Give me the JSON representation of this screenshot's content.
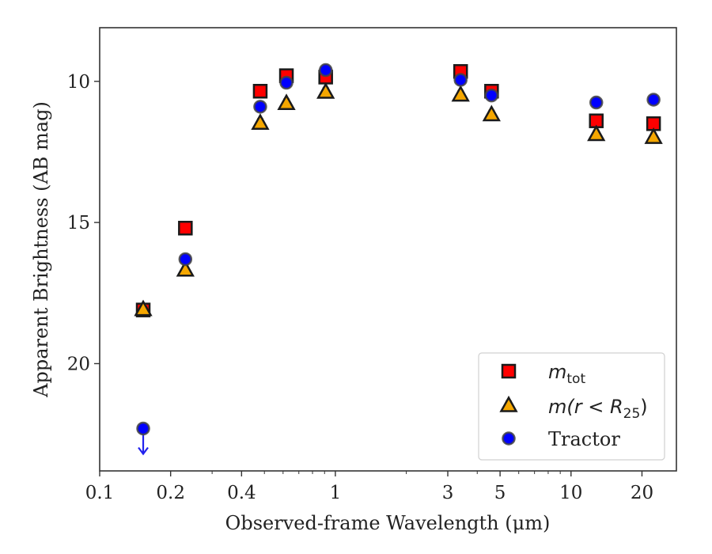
{
  "chart_data": {
    "type": "scatter",
    "title": "",
    "xlabel": "Observed-frame Wavelength (μm)",
    "ylabel": "Apparent Brightness (AB mag)",
    "xscale": "log",
    "xlim": [
      0.1,
      28
    ],
    "ylim": [
      23.8,
      8.1
    ],
    "y_inverted": true,
    "x_ticks": [
      {
        "value": 0.1,
        "label": "0.1"
      },
      {
        "value": 0.2,
        "label": "0.2"
      },
      {
        "value": 0.4,
        "label": "0.4"
      },
      {
        "value": 1,
        "label": "1"
      },
      {
        "value": 3,
        "label": "3"
      },
      {
        "value": 5,
        "label": "5"
      },
      {
        "value": 10,
        "label": "10"
      },
      {
        "value": 20,
        "label": "20"
      }
    ],
    "y_ticks": [
      {
        "value": 10,
        "label": "10"
      },
      {
        "value": 15,
        "label": "15"
      },
      {
        "value": 20,
        "label": "20"
      }
    ],
    "grid": false,
    "legend_position": "lower-right",
    "series": [
      {
        "name": "m_tot",
        "label_base": "m",
        "label_sub": "tot",
        "marker": "square",
        "color": "#ff0000",
        "errcolor": "#cc0000",
        "points": [
          {
            "x": 0.153,
            "y": 18.1
          },
          {
            "x": 0.231,
            "y": 15.2
          },
          {
            "x": 0.48,
            "y": 10.35
          },
          {
            "x": 0.62,
            "y": 9.8
          },
          {
            "x": 0.91,
            "y": 9.85
          },
          {
            "x": 3.4,
            "y": 9.65
          },
          {
            "x": 4.6,
            "y": 10.35
          },
          {
            "x": 12.8,
            "y": 11.4
          },
          {
            "x": 22.4,
            "y": 11.5
          }
        ]
      },
      {
        "name": "m(r < R25)",
        "label_base": "m(r < R",
        "label_sub": "25",
        "label_tail": ")",
        "marker": "triangle",
        "color": "#f5a700",
        "errcolor": "#e8a317",
        "points": [
          {
            "x": 0.153,
            "y": 18.1
          },
          {
            "x": 0.231,
            "y": 16.7
          },
          {
            "x": 0.48,
            "y": 11.5
          },
          {
            "x": 0.62,
            "y": 10.8
          },
          {
            "x": 0.91,
            "y": 10.4
          },
          {
            "x": 3.4,
            "y": 10.5
          },
          {
            "x": 4.6,
            "y": 11.2
          },
          {
            "x": 12.8,
            "y": 11.9
          },
          {
            "x": 22.4,
            "y": 12.0
          }
        ]
      },
      {
        "name": "Tractor",
        "marker": "circle",
        "color": "#0000ff",
        "errcolor": "#2222ee",
        "points": [
          {
            "x": 0.153,
            "y": 22.3,
            "upper_limit": true
          },
          {
            "x": 0.231,
            "y": 16.3
          },
          {
            "x": 0.48,
            "y": 10.9
          },
          {
            "x": 0.62,
            "y": 10.05
          },
          {
            "x": 0.91,
            "y": 9.6
          },
          {
            "x": 3.4,
            "y": 9.95
          },
          {
            "x": 4.6,
            "y": 10.5
          },
          {
            "x": 12.8,
            "y": 10.75
          },
          {
            "x": 22.4,
            "y": 10.65
          }
        ]
      }
    ]
  }
}
